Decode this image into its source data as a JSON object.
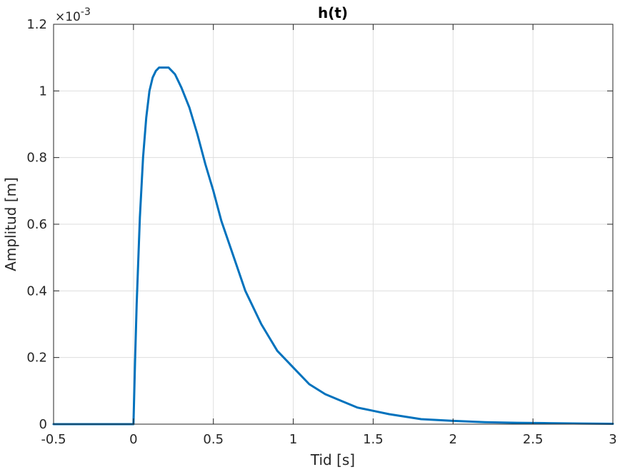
{
  "chart_data": {
    "type": "line",
    "title": "h(t)",
    "xlabel": "Tid [s]",
    "ylabel": "Amplitud [m]",
    "xlim": [
      -0.5,
      3
    ],
    "ylim": [
      0,
      0.0012
    ],
    "y_exponent_label": "×10-3",
    "y_exponent_base": "×10",
    "y_exponent_power": "-3",
    "grid": true,
    "line_color": "#0072BD",
    "x_ticks": [
      -0.5,
      0,
      0.5,
      1,
      1.5,
      2,
      2.5,
      3
    ],
    "x_tick_labels": [
      "-0.5",
      "0",
      "0.5",
      "1",
      "1.5",
      "2",
      "2.5",
      "3"
    ],
    "y_ticks": [
      0,
      0.0002,
      0.0004,
      0.0006,
      0.0008,
      0.001,
      0.0012
    ],
    "y_tick_labels": [
      "0",
      "0.2",
      "0.4",
      "0.6",
      "0.8",
      "1",
      "1.2"
    ],
    "series": [
      {
        "x": [
          -0.5,
          -0.25,
          0,
          0.001,
          0.01,
          0.02,
          0.04,
          0.06,
          0.08,
          0.1,
          0.12,
          0.14,
          0.16,
          0.18,
          0.2,
          0.22,
          0.24,
          0.26,
          0.28,
          0.3,
          0.35,
          0.4,
          0.45,
          0.5,
          0.55,
          0.6,
          0.65,
          0.7,
          0.8,
          0.9,
          1.0,
          1.1,
          1.2,
          1.3,
          1.4,
          1.5,
          1.6,
          1.8,
          2.0,
          2.2,
          2.4,
          2.6,
          2.8,
          3.0
        ],
        "y": [
          0,
          0,
          0,
          2e-05,
          0.00019,
          0.00036,
          0.00062,
          0.0008,
          0.00092,
          0.001,
          0.00104,
          0.00106,
          0.00107,
          0.00107,
          0.00107,
          0.00107,
          0.00106,
          0.00105,
          0.00103,
          0.00101,
          0.00095,
          0.00087,
          0.00078,
          0.0007,
          0.00061,
          0.00054,
          0.00047,
          0.0004,
          0.0003,
          0.00022,
          0.00017,
          0.00012,
          9e-05,
          7e-05,
          5e-05,
          4e-05,
          3e-05,
          1.5e-05,
          1e-05,
          6e-06,
          4e-06,
          3e-06,
          2e-06,
          1e-06
        ]
      }
    ]
  }
}
